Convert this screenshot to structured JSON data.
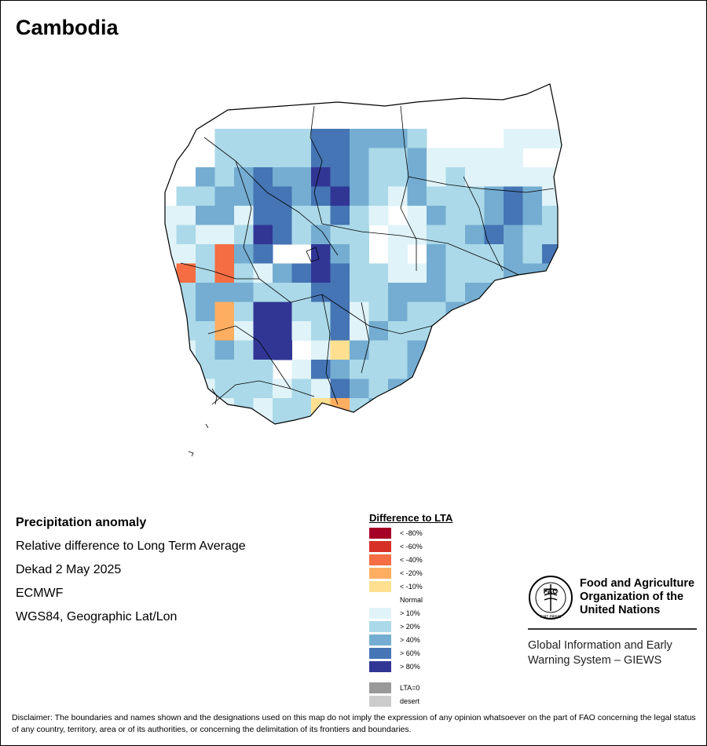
{
  "title": "Cambodia",
  "info": {
    "heading": "Precipitation anomaly",
    "line1": "Relative difference to Long Term Average",
    "line2": "Dekad 2 May 2025",
    "line3": "ECMWF",
    "line4": "WGS84, Geographic Lat/Lon"
  },
  "legend": {
    "title": "Difference to LTA",
    "items": [
      {
        "label": "< -80%",
        "color": "#a50026"
      },
      {
        "label": "< -60%",
        "color": "#d73027"
      },
      {
        "label": "< -40%",
        "color": "#f46d43"
      },
      {
        "label": "< -20%",
        "color": "#fdae61"
      },
      {
        "label": "< -10%",
        "color": "#fee090"
      },
      {
        "label": "Normal",
        "color": "#ffffff"
      },
      {
        "label": "> 10%",
        "color": "#e0f3f8"
      },
      {
        "label": "> 20%",
        "color": "#abd9e9"
      },
      {
        "label": "> 40%",
        "color": "#74add1"
      },
      {
        "label": "> 60%",
        "color": "#4575b4"
      },
      {
        "label": "> 80%",
        "color": "#313695"
      },
      {
        "label": "LTA=0",
        "color": "#999999"
      },
      {
        "label": "desert",
        "color": "#cccccc"
      }
    ]
  },
  "fao": {
    "org_line1": "Food and Agriculture",
    "org_line2": "Organization of the",
    "org_line3": "United Nations",
    "giews_line1": "Global Information and Early",
    "giews_line2": "Warning System – GIEWS",
    "logo_text": "FAO",
    "logo_ring": "FIAT PANIS"
  },
  "disclaimer": "Disclaimer: The boundaries and names shown and the designations used on this map do not imply the expression of any opinion whatsoever on the part of FAO concerning the legal status of any country, territory, area or of its authorities, or concerning the delimitation of its frontiers and boundaries."
}
